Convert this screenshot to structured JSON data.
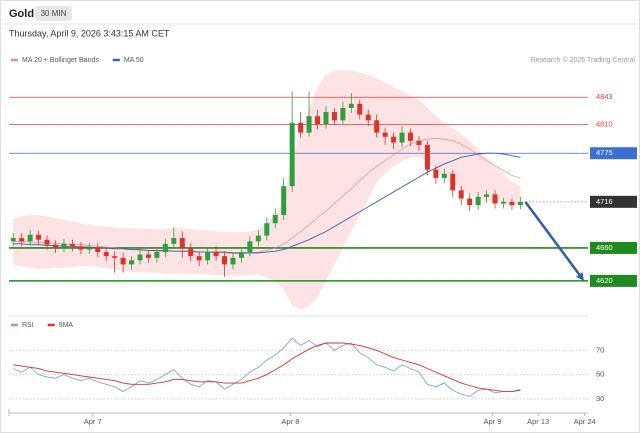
{
  "header": {
    "title": "Gold",
    "interval": "30 MIN",
    "date": "Thursday, April 9, 2026 3:43:15 AM CET",
    "credit": "Research © 2026 Trading Central"
  },
  "chart_data": [
    {
      "type": "candlestick",
      "xlim": [
        -0.5,
        68
      ],
      "ylim": [
        4581,
        4887
      ],
      "up_color": "#2f9e3f",
      "down_color": "#d9342b",
      "open": [
        4668,
        4672,
        4668,
        4676,
        4670,
        4664,
        4660,
        4665,
        4662,
        4658,
        4660,
        4655,
        4650,
        4648,
        4640,
        4645,
        4652,
        4648,
        4655,
        4665,
        4672,
        4660,
        4650,
        4645,
        4655,
        4650,
        4640,
        4648,
        4655,
        4668,
        4675,
        4690,
        4700,
        4735,
        4812,
        4800,
        4820,
        4810,
        4825,
        4815,
        4830,
        4835,
        4822,
        4815,
        4800,
        4795,
        4788,
        4800,
        4790,
        4785,
        4755,
        4745,
        4750,
        4730,
        4720,
        4712,
        4722,
        4725,
        4714,
        4716,
        4712
      ],
      "high": [
        4678,
        4678,
        4682,
        4681,
        4675,
        4669,
        4671,
        4670,
        4667,
        4666,
        4666,
        4661,
        4656,
        4654,
        4650,
        4658,
        4657,
        4661,
        4671,
        4685,
        4680,
        4666,
        4656,
        4661,
        4662,
        4656,
        4654,
        4661,
        4674,
        4682,
        4697,
        4708,
        4745,
        4850,
        4825,
        4850,
        4828,
        4832,
        4830,
        4838,
        4848,
        4840,
        4828,
        4822,
        4806,
        4800,
        4808,
        4805,
        4796,
        4790,
        4760,
        4756,
        4755,
        4735,
        4726,
        4728,
        4730,
        4730,
        4721,
        4720,
        4722
      ],
      "low": [
        4662,
        4662,
        4663,
        4664,
        4658,
        4654,
        4655,
        4656,
        4652,
        4653,
        4649,
        4644,
        4630,
        4630,
        4634,
        4640,
        4642,
        4642,
        4649,
        4659,
        4648,
        4644,
        4638,
        4640,
        4644,
        4625,
        4634,
        4642,
        4650,
        4662,
        4669,
        4684,
        4694,
        4728,
        4794,
        4795,
        4804,
        4805,
        4809,
        4810,
        4824,
        4816,
        4808,
        4794,
        4785,
        4780,
        4782,
        4784,
        4778,
        4748,
        4738,
        4739,
        4722,
        4712,
        4705,
        4706,
        4715,
        4708,
        4708,
        4706,
        4707
      ],
      "close": [
        4672,
        4668,
        4676,
        4670,
        4664,
        4660,
        4665,
        4662,
        4658,
        4660,
        4655,
        4650,
        4648,
        4640,
        4645,
        4652,
        4648,
        4655,
        4665,
        4672,
        4660,
        4650,
        4645,
        4655,
        4650,
        4640,
        4648,
        4655,
        4668,
        4675,
        4690,
        4700,
        4735,
        4812,
        4800,
        4820,
        4810,
        4825,
        4815,
        4830,
        4835,
        4822,
        4815,
        4800,
        4795,
        4788,
        4800,
        4790,
        4785,
        4755,
        4745,
        4750,
        4730,
        4720,
        4712,
        4722,
        4725,
        4714,
        4716,
        4712,
        4716
      ],
      "series": [
        {
          "name": "MA 20 + Bollinger Bands",
          "color": "#f08a8a",
          "band_color": "#fde3e3",
          "values": [
            4668,
            4668,
            4667,
            4667,
            4666,
            4666,
            4665,
            4664,
            4664,
            4663,
            4662,
            4661,
            4660,
            4659,
            4658,
            4657,
            4657,
            4656,
            4656,
            4656,
            4656,
            4655,
            4655,
            4655,
            4654,
            4654,
            4653,
            4653,
            4654,
            4655,
            4657,
            4660,
            4665,
            4672,
            4680,
            4688,
            4697,
            4705,
            4714,
            4723,
            4732,
            4742,
            4751,
            4759,
            4766,
            4773,
            4780,
            4786,
            4790,
            4792,
            4793,
            4792,
            4790,
            4786,
            4780,
            4773,
            4766,
            4760,
            4754,
            4748,
            4745
          ],
          "upper": [
            4695,
            4698,
            4700,
            4700,
            4698,
            4696,
            4694,
            4692,
            4690,
            4688,
            4687,
            4686,
            4685,
            4684,
            4684,
            4683,
            4683,
            4682,
            4683,
            4684,
            4684,
            4683,
            4682,
            4681,
            4680,
            4680,
            4679,
            4679,
            4680,
            4682,
            4690,
            4700,
            4720,
            4770,
            4800,
            4830,
            4855,
            4870,
            4875,
            4876,
            4875,
            4873,
            4870,
            4866,
            4860,
            4855,
            4850,
            4845,
            4840,
            4830,
            4820,
            4812,
            4805,
            4798,
            4790,
            4780,
            4770,
            4760,
            4750,
            4740,
            4735
          ],
          "lower": [
            4640,
            4638,
            4636,
            4635,
            4635,
            4636,
            4636,
            4637,
            4638,
            4638,
            4637,
            4636,
            4634,
            4632,
            4631,
            4630,
            4630,
            4630,
            4629,
            4629,
            4629,
            4628,
            4628,
            4628,
            4627,
            4627,
            4626,
            4626,
            4627,
            4628,
            4624,
            4620,
            4610,
            4590,
            4585,
            4590,
            4600,
            4620,
            4640,
            4660,
            4680,
            4700,
            4720,
            4740,
            4750,
            4760,
            4765,
            4770,
            4770,
            4765,
            4755,
            4745,
            4738,
            4730,
            4725,
            4720,
            4718,
            4715,
            4713,
            4712,
            4712
          ]
        },
        {
          "name": "MA 50",
          "color": "#3b5fb0",
          "values": [
            4665,
            4665,
            4664,
            4664,
            4663,
            4663,
            4662,
            4662,
            4661,
            4661,
            4660,
            4660,
            4659,
            4659,
            4658,
            4658,
            4657,
            4657,
            4657,
            4656,
            4656,
            4656,
            4655,
            4655,
            4655,
            4655,
            4654,
            4654,
            4654,
            4654,
            4655,
            4656,
            4658,
            4662,
            4666,
            4670,
            4675,
            4680,
            4686,
            4692,
            4698,
            4704,
            4710,
            4716,
            4722,
            4728,
            4734,
            4740,
            4746,
            4752,
            4757,
            4762,
            4766,
            4770,
            4772,
            4774,
            4775,
            4775,
            4774,
            4772,
            4770
          ]
        }
      ],
      "levels": [
        {
          "value": 4843,
          "color": "#e8403a",
          "style": "plain"
        },
        {
          "value": 4810,
          "color": "#e8403a",
          "style": "plain"
        },
        {
          "value": 4775,
          "color": "#3b6fd0",
          "style": "box"
        },
        {
          "value": 4716,
          "color": "#333333",
          "style": "current"
        },
        {
          "value": 4660,
          "color": "#1f8a1f",
          "style": "box"
        },
        {
          "value": 4620,
          "color": "#1f8a1f",
          "style": "box"
        }
      ],
      "forecast_color": "#2f5ea8"
    },
    {
      "type": "line",
      "xlim": [
        -0.5,
        68
      ],
      "ylim": [
        20,
        90
      ],
      "yticks": [
        70,
        50,
        30
      ],
      "xticks": [
        {
          "value": 9.4,
          "label": "Apr 7"
        },
        {
          "value": 32.8,
          "label": "Apr 8"
        },
        {
          "value": 56.7,
          "label": "Apr 9"
        },
        {
          "value": 62.1,
          "label": "Apr 13"
        },
        {
          "value": 67.6,
          "label": "Apr 24"
        }
      ],
      "series": [
        {
          "name": "RSI",
          "color": "#7aa7e0",
          "values": [
            55,
            52,
            56,
            50,
            48,
            47,
            50,
            47,
            45,
            47,
            44,
            42,
            40,
            36,
            40,
            45,
            43,
            46,
            50,
            54,
            47,
            42,
            40,
            45,
            44,
            38,
            42,
            46,
            52,
            56,
            62,
            66,
            72,
            80,
            74,
            78,
            73,
            76,
            70,
            74,
            76,
            68,
            64,
            58,
            56,
            53,
            58,
            55,
            52,
            42,
            40,
            43,
            37,
            34,
            32,
            37,
            38,
            35,
            36,
            36,
            38
          ]
        },
        {
          "name": "9MA",
          "color": "#d9342b",
          "values": [
            58,
            57,
            56,
            55,
            53,
            52,
            51,
            50,
            49,
            48,
            47,
            46,
            45,
            43,
            42,
            42,
            42,
            43,
            44,
            46,
            46,
            45,
            44,
            44,
            44,
            43,
            43,
            43,
            45,
            47,
            50,
            54,
            58,
            63,
            67,
            71,
            74,
            76,
            76,
            76,
            75,
            74,
            72,
            70,
            67,
            64,
            62,
            60,
            58,
            55,
            52,
            49,
            46,
            43,
            41,
            39,
            38,
            37,
            36,
            36,
            37
          ]
        }
      ]
    }
  ]
}
